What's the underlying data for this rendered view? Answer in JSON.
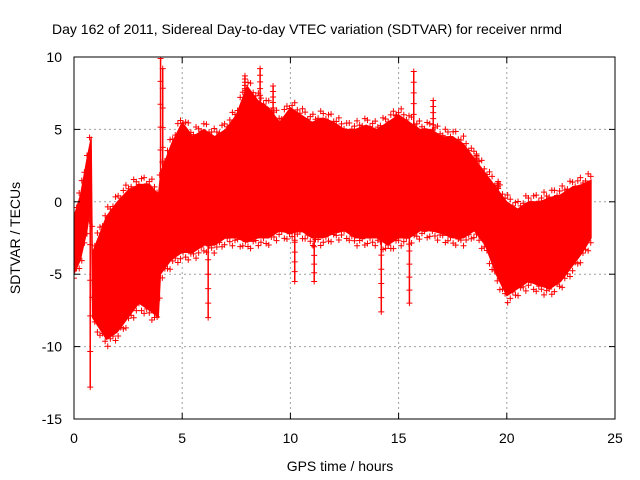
{
  "chart_data": {
    "type": "scatter",
    "title": "Day 162 of 2011, Sidereal Day-to-day VTEC variation (SDTVAR) for receiver nrmd",
    "xlabel": "GPS time / hours",
    "ylabel": "SDTVAR / TECUs",
    "xlim": [
      0,
      25
    ],
    "ylim": [
      -15,
      10
    ],
    "xticks": [
      0,
      5,
      10,
      15,
      20,
      25
    ],
    "yticks": [
      -15,
      -10,
      -5,
      0,
      5,
      10
    ],
    "grid": true,
    "marker": "+",
    "color": "#ff0000",
    "series": [
      {
        "name": "SDTVAR",
        "envelope_upper": {
          "x": [
            0.0,
            0.3,
            0.6,
            0.8,
            0.85,
            1.5,
            2.0,
            2.5,
            3.0,
            3.5,
            3.9,
            4.0,
            4.5,
            5.0,
            5.5,
            6.0,
            6.5,
            7.0,
            7.5,
            8.0,
            8.5,
            9.0,
            9.5,
            10.0,
            10.5,
            11.0,
            11.5,
            12.0,
            12.5,
            13.0,
            13.5,
            14.0,
            14.5,
            15.0,
            15.5,
            16.0,
            16.5,
            17.0,
            17.5,
            18.0,
            18.5,
            19.0,
            19.5,
            20.0,
            20.5,
            21.0,
            21.5,
            22.0,
            22.5,
            23.0,
            23.5,
            23.9
          ],
          "y": [
            -1.0,
            0.5,
            3.0,
            4.5,
            -3.5,
            -1.0,
            0.0,
            0.8,
            1.2,
            1.2,
            0.5,
            2.0,
            4.0,
            5.5,
            4.5,
            5.0,
            4.5,
            5.0,
            6.0,
            8.0,
            7.0,
            6.5,
            5.5,
            6.5,
            6.0,
            5.5,
            5.8,
            5.5,
            5.0,
            5.0,
            5.3,
            5.0,
            5.5,
            6.0,
            5.5,
            5.0,
            5.0,
            4.5,
            4.5,
            4.0,
            3.0,
            2.0,
            1.0,
            0.0,
            -0.5,
            0.0,
            0.0,
            0.3,
            0.5,
            1.0,
            1.2,
            1.5
          ]
        },
        "envelope_lower": {
          "x": [
            0.0,
            0.3,
            0.6,
            0.8,
            0.85,
            1.5,
            2.0,
            2.5,
            3.0,
            3.5,
            3.9,
            4.0,
            4.5,
            5.0,
            5.5,
            6.0,
            6.5,
            7.0,
            7.5,
            8.0,
            8.5,
            9.0,
            9.5,
            10.0,
            10.5,
            11.0,
            11.5,
            12.0,
            12.5,
            13.0,
            13.5,
            14.0,
            14.5,
            15.0,
            15.5,
            16.0,
            16.5,
            17.0,
            17.5,
            18.0,
            18.5,
            19.0,
            19.5,
            20.0,
            20.5,
            21.0,
            21.5,
            22.0,
            22.5,
            23.0,
            23.5,
            23.9
          ],
          "y": [
            -5.0,
            -4.0,
            -2.0,
            0.0,
            -8.0,
            -9.5,
            -9.0,
            -8.0,
            -7.0,
            -7.5,
            -8.0,
            -5.0,
            -4.0,
            -3.5,
            -3.5,
            -3.0,
            -3.0,
            -2.5,
            -2.5,
            -2.8,
            -2.5,
            -2.5,
            -2.0,
            -2.2,
            -2.0,
            -2.5,
            -2.5,
            -2.2,
            -2.0,
            -2.5,
            -2.5,
            -2.5,
            -3.0,
            -2.5,
            -2.5,
            -2.0,
            -2.0,
            -2.2,
            -2.5,
            -2.5,
            -2.0,
            -3.0,
            -5.0,
            -6.5,
            -6.0,
            -5.5,
            -5.8,
            -6.0,
            -5.5,
            -4.5,
            -3.5,
            -2.5
          ]
        },
        "spikes": [
          {
            "x": 0.75,
            "y": -12.8
          },
          {
            "x": 4.0,
            "y": 9.9
          },
          {
            "x": 4.1,
            "y": 9.2
          },
          {
            "x": 6.2,
            "y": -8.0
          },
          {
            "x": 7.9,
            "y": 8.7
          },
          {
            "x": 8.6,
            "y": 9.2
          },
          {
            "x": 9.2,
            "y": 8.0
          },
          {
            "x": 10.2,
            "y": -5.5
          },
          {
            "x": 11.1,
            "y": -5.5
          },
          {
            "x": 14.2,
            "y": -7.6
          },
          {
            "x": 14.9,
            "y": 6.0
          },
          {
            "x": 15.2,
            "y": 4.5
          },
          {
            "x": 15.5,
            "y": -7.0
          },
          {
            "x": 15.7,
            "y": 9.0
          },
          {
            "x": 16.6,
            "y": 7.0
          },
          {
            "x": 18.6,
            "y": 3.3
          },
          {
            "x": 19.6,
            "y": 1.4
          }
        ]
      }
    ]
  }
}
